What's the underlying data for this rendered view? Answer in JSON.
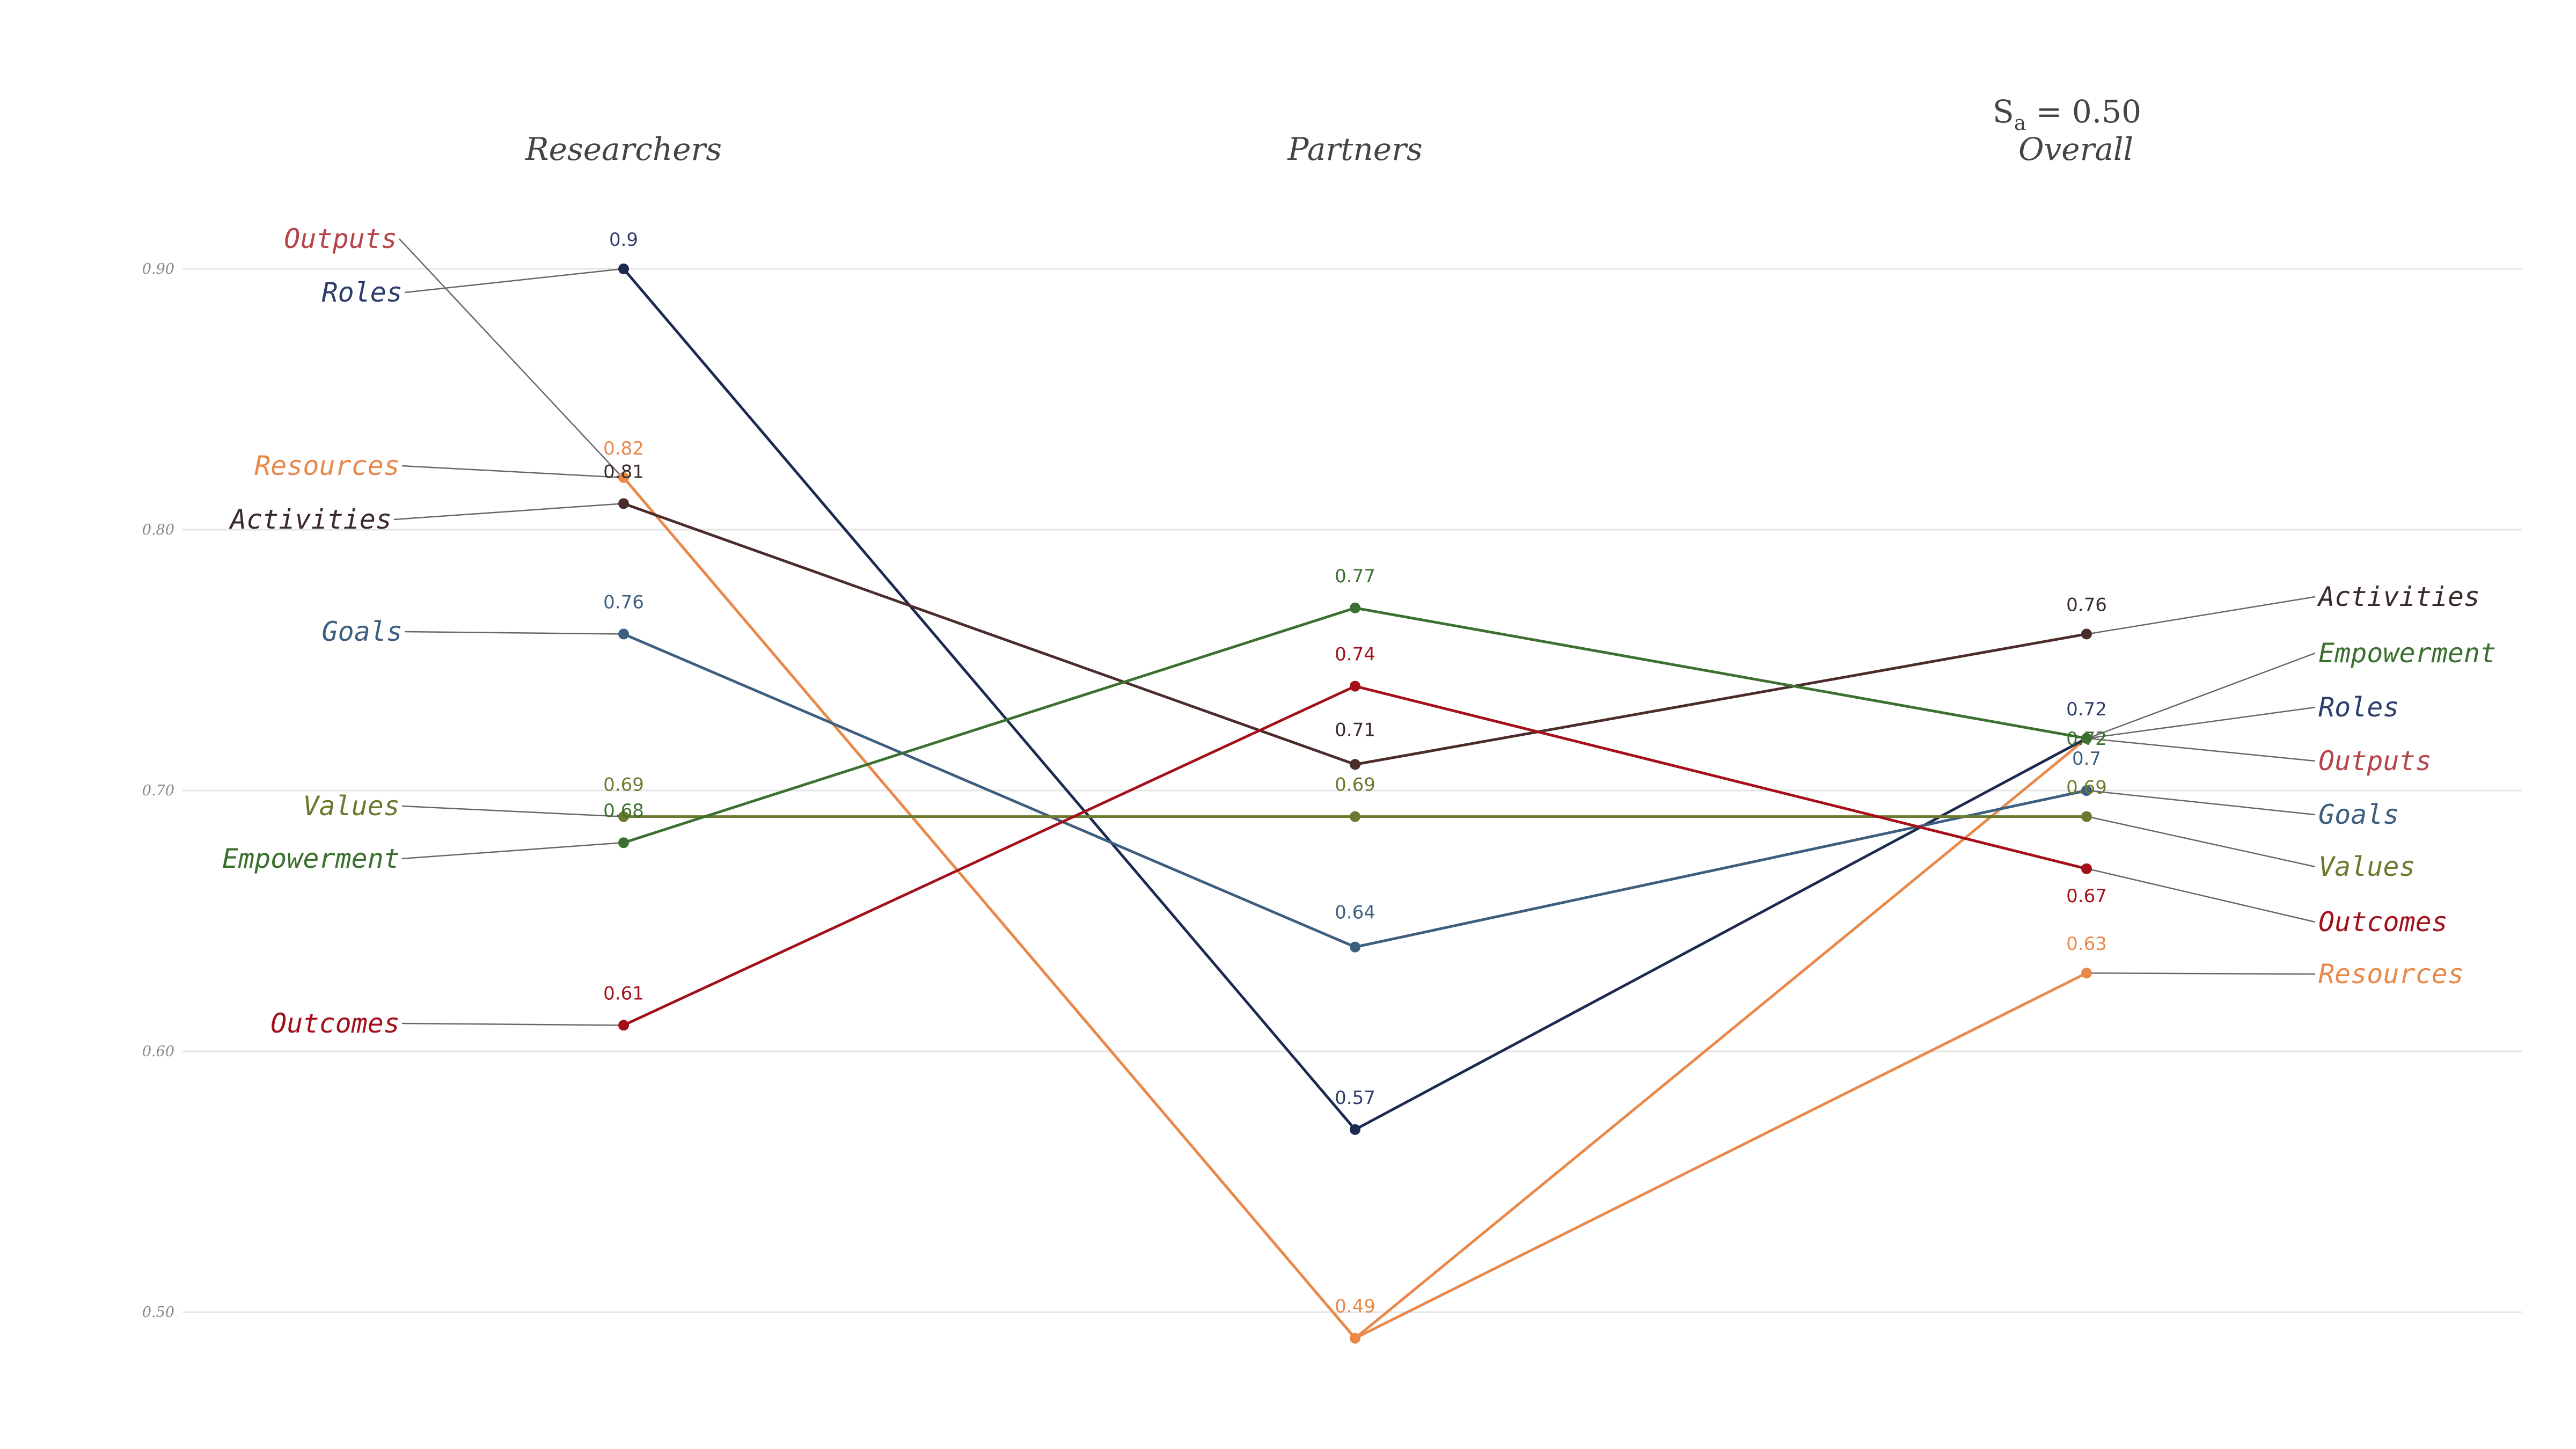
{
  "annotation": {
    "symbol": "S",
    "subscript": "a",
    "rest": " = 0.50"
  },
  "chart_data": {
    "type": "line",
    "title": "",
    "xlabel": "",
    "ylabel": "",
    "categories": [
      "Researchers",
      "Partners",
      "Overall"
    ],
    "ylim": [
      0.49,
      0.9
    ],
    "yticks": [
      0.5,
      0.6,
      0.7,
      0.8,
      0.9
    ],
    "yticklabels": [
      "0.50",
      "0.60",
      "0.70",
      "0.80",
      "0.90"
    ],
    "grid": true,
    "series": [
      {
        "name": "Outputs",
        "values": [
          0.82,
          0.49,
          0.72
        ],
        "labels": [
          "0.82",
          "0.49",
          "0.72"
        ],
        "color": "#E8894A",
        "label_color": "#B5454A"
      },
      {
        "name": "Roles",
        "values": [
          0.9,
          0.57,
          0.72
        ],
        "labels": [
          "0.9",
          "0.57",
          "0.72"
        ],
        "color": "#1B2A4E",
        "label_color": "#2E3E6B"
      },
      {
        "name": "Resources",
        "values": [
          0.82,
          0.49,
          0.63
        ],
        "labels": [
          "0.82",
          "0.49",
          "0.63"
        ],
        "color": "#E8894A",
        "label_color": "#E8894A"
      },
      {
        "name": "Activities",
        "values": [
          0.81,
          0.71,
          0.76
        ],
        "labels": [
          "0.81",
          "0.71",
          "0.76"
        ],
        "color": "#4A2C2A",
        "label_color": "#3A2A2A"
      },
      {
        "name": "Goals",
        "values": [
          0.76,
          0.64,
          0.7
        ],
        "labels": [
          "0.76",
          "0.64",
          "0.7"
        ],
        "color": "#3E5E80",
        "label_color": "#3E5E80"
      },
      {
        "name": "Values",
        "values": [
          0.69,
          0.69,
          0.69
        ],
        "labels": [
          "0.69",
          "0.69",
          "0.69"
        ],
        "color": "#6B7A2E",
        "label_color": "#6B7A2E"
      },
      {
        "name": "Empowerment",
        "values": [
          0.68,
          0.77,
          0.72
        ],
        "labels": [
          "0.68",
          "0.77",
          "0.72"
        ],
        "color": "#3C7030",
        "label_color": "#3C7030"
      },
      {
        "name": "Outcomes",
        "values": [
          0.61,
          0.74,
          0.67
        ],
        "labels": [
          "0.61",
          "0.74",
          "0.67"
        ],
        "color": "#A3101A",
        "label_color": "#A3101A"
      }
    ]
  }
}
